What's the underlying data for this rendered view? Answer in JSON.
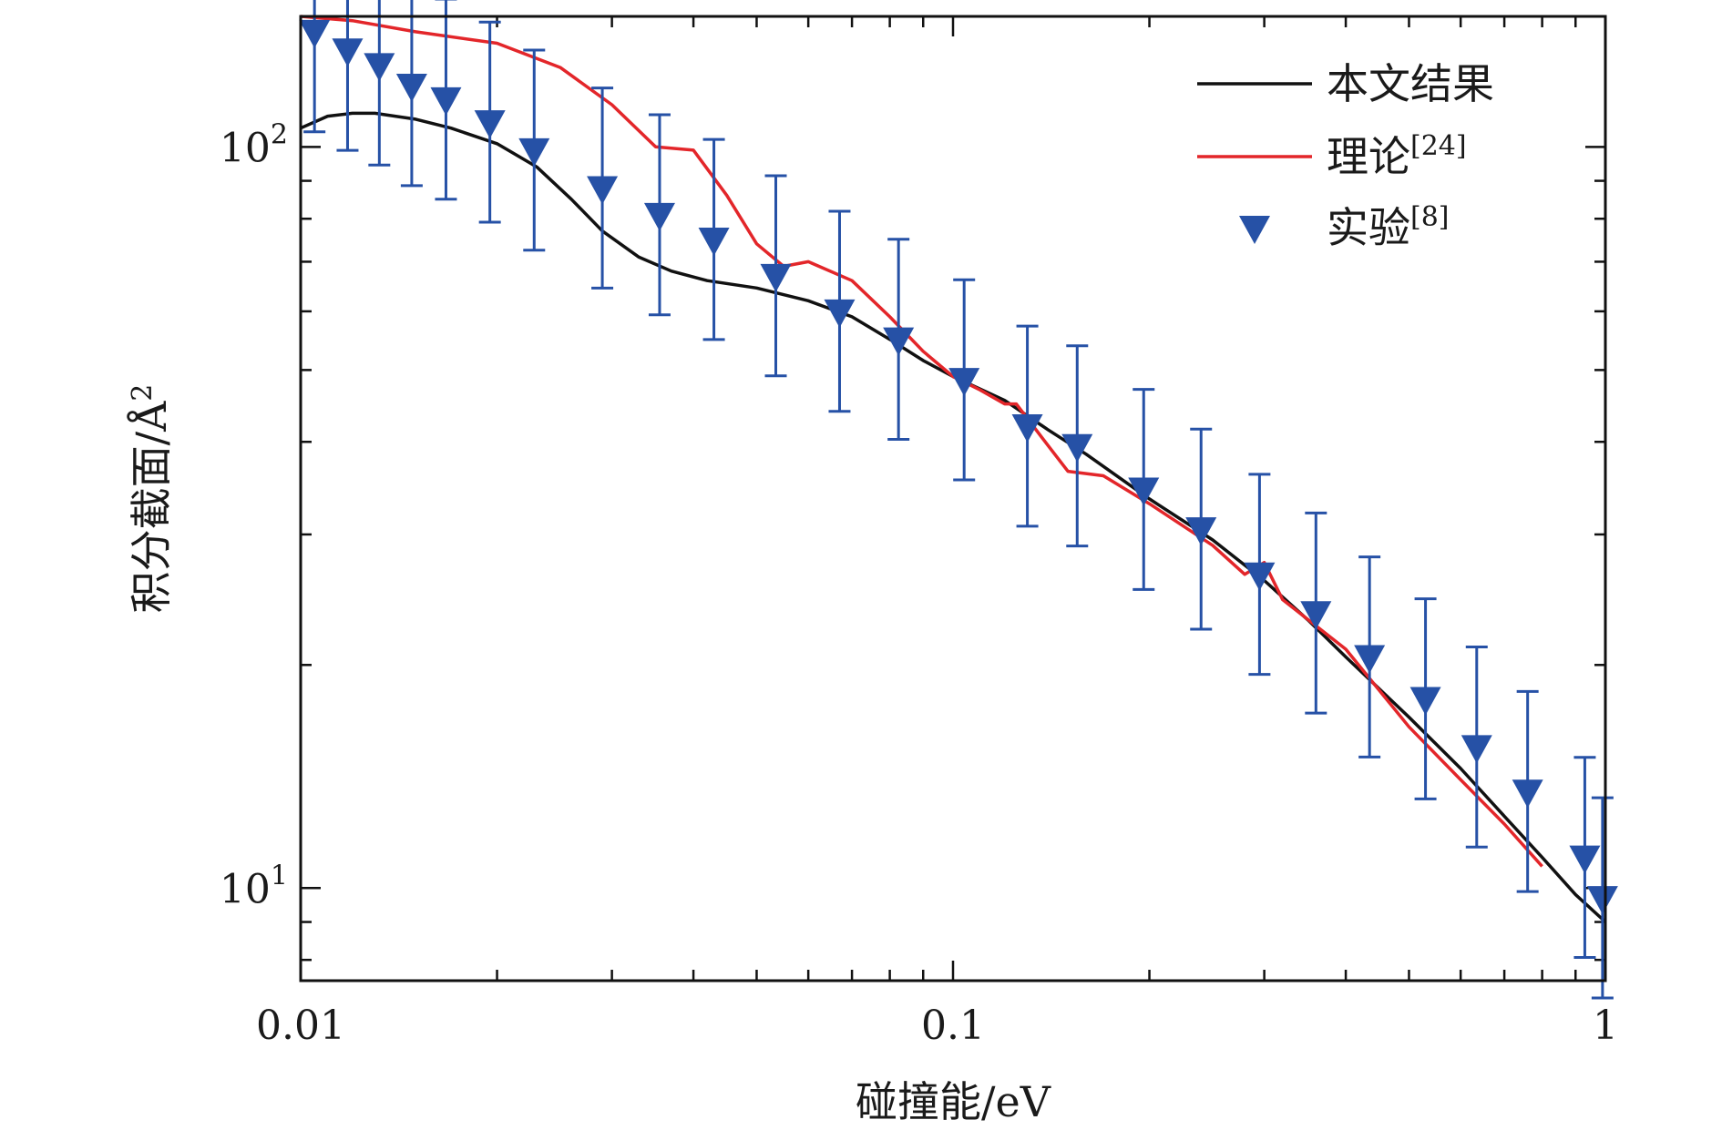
{
  "chart_data": {
    "type": "line",
    "xscale": "log",
    "yscale": "log",
    "xlim": [
      0.01,
      1
    ],
    "ylim": [
      7.5,
      150
    ],
    "xlabel": "碰撞能/eV",
    "ylabel": "积分截面/Å",
    "ylabel_sup": "2",
    "x_ticks": [
      {
        "value": 0.01,
        "label": "0.01"
      },
      {
        "value": 0.1,
        "label": "0.1"
      },
      {
        "value": 1,
        "label": "1"
      }
    ],
    "y_ticks": [
      {
        "value": 10,
        "base": "10",
        "exp": "1"
      },
      {
        "value": 100,
        "base": "10",
        "exp": "2"
      }
    ],
    "series": [
      {
        "name": "本文结果",
        "color": "#111111",
        "kind": "line",
        "points": [
          [
            0.01,
            106
          ],
          [
            0.011,
            110
          ],
          [
            0.012,
            111
          ],
          [
            0.013,
            111
          ],
          [
            0.015,
            109
          ],
          [
            0.017,
            106
          ],
          [
            0.02,
            101
          ],
          [
            0.023,
            94
          ],
          [
            0.026,
            85
          ],
          [
            0.029,
            77
          ],
          [
            0.033,
            71
          ],
          [
            0.037,
            68
          ],
          [
            0.042,
            66
          ],
          [
            0.05,
            64.5
          ],
          [
            0.06,
            62
          ],
          [
            0.07,
            59
          ],
          [
            0.08,
            55
          ],
          [
            0.09,
            51.5
          ],
          [
            0.1,
            49
          ],
          [
            0.12,
            45.5
          ],
          [
            0.14,
            41.5
          ],
          [
            0.16,
            38.5
          ],
          [
            0.2,
            33.5
          ],
          [
            0.25,
            29.5
          ],
          [
            0.3,
            26
          ],
          [
            0.35,
            23
          ],
          [
            0.4,
            20.5
          ],
          [
            0.5,
            17
          ],
          [
            0.6,
            14.5
          ],
          [
            0.7,
            12.5
          ],
          [
            0.8,
            11
          ],
          [
            0.9,
            9.8
          ],
          [
            1.0,
            9.0
          ]
        ]
      },
      {
        "name": "理论",
        "ref": "[24]",
        "color": "#e3262a",
        "kind": "line",
        "points": [
          [
            0.01,
            150
          ],
          [
            0.012,
            148
          ],
          [
            0.015,
            143
          ],
          [
            0.02,
            138
          ],
          [
            0.025,
            128
          ],
          [
            0.03,
            114
          ],
          [
            0.035,
            100
          ],
          [
            0.04,
            99
          ],
          [
            0.045,
            86
          ],
          [
            0.05,
            74
          ],
          [
            0.055,
            69
          ],
          [
            0.06,
            70
          ],
          [
            0.07,
            66
          ],
          [
            0.08,
            59
          ],
          [
            0.09,
            53
          ],
          [
            0.1,
            49
          ],
          [
            0.11,
            47
          ],
          [
            0.12,
            45
          ],
          [
            0.125,
            45
          ],
          [
            0.14,
            39.5
          ],
          [
            0.15,
            36.5
          ],
          [
            0.17,
            36
          ],
          [
            0.2,
            33
          ],
          [
            0.25,
            29
          ],
          [
            0.28,
            26.5
          ],
          [
            0.3,
            27.5
          ],
          [
            0.32,
            24.5
          ],
          [
            0.4,
            21
          ],
          [
            0.5,
            16.5
          ],
          [
            0.6,
            14
          ],
          [
            0.7,
            12.2
          ],
          [
            0.8,
            10.7
          ]
        ]
      },
      {
        "name": "实验",
        "ref": "[8]",
        "color": "#2651a6",
        "kind": "scatter-errorbar",
        "points": [
          {
            "x": 0.0105,
            "y": 143,
            "err": 0.27
          },
          {
            "x": 0.0118,
            "y": 135,
            "err": 0.27
          },
          {
            "x": 0.0132,
            "y": 129,
            "err": 0.27
          },
          {
            "x": 0.0148,
            "y": 121,
            "err": 0.27
          },
          {
            "x": 0.0167,
            "y": 116,
            "err": 0.27
          },
          {
            "x": 0.0195,
            "y": 108,
            "err": 0.27
          },
          {
            "x": 0.0228,
            "y": 99,
            "err": 0.27
          },
          {
            "x": 0.029,
            "y": 88,
            "err": 0.27
          },
          {
            "x": 0.0355,
            "y": 81,
            "err": 0.27
          },
          {
            "x": 0.043,
            "y": 75,
            "err": 0.27
          },
          {
            "x": 0.0535,
            "y": 67,
            "err": 0.27
          },
          {
            "x": 0.067,
            "y": 60,
            "err": 0.27
          },
          {
            "x": 0.0825,
            "y": 55,
            "err": 0.27
          },
          {
            "x": 0.104,
            "y": 48.5,
            "err": 0.27
          },
          {
            "x": 0.13,
            "y": 42,
            "err": 0.27
          },
          {
            "x": 0.155,
            "y": 39.5,
            "err": 0.27
          },
          {
            "x": 0.196,
            "y": 34.5,
            "err": 0.27
          },
          {
            "x": 0.24,
            "y": 30.5,
            "err": 0.27
          },
          {
            "x": 0.295,
            "y": 26.5,
            "err": 0.27
          },
          {
            "x": 0.36,
            "y": 23.5,
            "err": 0.27
          },
          {
            "x": 0.435,
            "y": 20.5,
            "err": 0.27
          },
          {
            "x": 0.53,
            "y": 18,
            "err": 0.27
          },
          {
            "x": 0.635,
            "y": 15.5,
            "err": 0.27
          },
          {
            "x": 0.76,
            "y": 13.5,
            "err": 0.27
          },
          {
            "x": 0.93,
            "y": 11,
            "err": 0.27
          },
          {
            "x": 0.99,
            "y": 9.7,
            "err": 0.27
          }
        ]
      }
    ],
    "legend": {
      "position": "top-right"
    }
  }
}
